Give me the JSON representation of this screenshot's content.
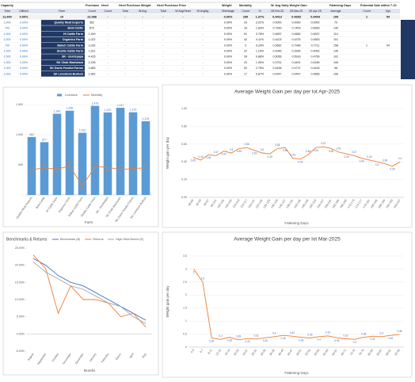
{
  "table": {
    "header_groups": [
      "Capacity",
      null,
      null,
      "Purchase",
      "Herd",
      "Herd Purchase Weight",
      null,
      "Herd Purchase Price",
      null,
      null,
      "Weight",
      "Mortality",
      null,
      "W. Avg Daily Weight Gain",
      null,
      null,
      "Fattening Days",
      "Potential Sale within 7-10",
      null
    ],
    "columns": [
      "Total",
      "Utilised",
      "Farm",
      "Count",
      "Count",
      "Total",
      "W.Avg",
      "Total",
      "W.Avg/Head",
      "W.Avg/kg",
      "Shrinkage",
      "Count",
      "%",
      "28-Feb-25",
      "28-Mar-25",
      "30-Apr-25",
      "Average",
      "Count",
      "Kgs"
    ],
    "total": [
      "11,400",
      "0.00%",
      "10",
      "22,088",
      "-",
      "-",
      "-",
      "-",
      "-",
      "-",
      "0.00%",
      "299",
      "1.37%",
      "0.4413",
      "0.4653",
      "0.4404",
      "109",
      "1",
      "54"
    ],
    "rows": [
      [
        "1,000",
        "0.00%",
        "Quality Meat Exports",
        "962",
        "-",
        "-",
        "-",
        "-",
        "-",
        "-",
        "0.00%",
        "29",
        "3.01%",
        "0.0000",
        "0.0000",
        "0.0000",
        "70",
        null,
        null
      ],
      [
        "700",
        "0.00%",
        "Bold Cattle",
        "872",
        "-",
        "-",
        "-",
        "-",
        "-",
        "-",
        "0.00%",
        "16",
        "1.83%",
        "0.7990",
        "0.7409",
        "0.6995",
        "140",
        null,
        null
      ],
      [
        "1,000",
        "0.00%",
        "HI Cattle Farm",
        "1,349",
        "-",
        "-",
        "-",
        "-",
        "-",
        "-",
        "0.00%",
        "51",
        "3.78%",
        "0.4657",
        "0.4669",
        "0.4637",
        "114",
        null,
        null
      ],
      [
        "1,000",
        "0.00%",
        "Organico Farm",
        "1,022",
        "-",
        "-",
        "-",
        "-",
        "-",
        "-",
        "0.00%",
        "42",
        "4.11%",
        "0.4103",
        "0.4375",
        "0.4563",
        "101",
        null,
        null
      ],
      [
        "700",
        "0.00%",
        "Bakuh Cattle Farm",
        "1,032",
        "-",
        "-",
        "-",
        "-",
        "-",
        "-",
        "0.00%",
        "3",
        "0.29%",
        "0.3682",
        "0.7948",
        "0.7711",
        "158",
        "1",
        "54"
      ],
      [
        "1,000",
        "0.00%",
        "Shellis Cattle Farm",
        "1,911",
        "-",
        "-",
        "-",
        "-",
        "-",
        "-",
        "0.00%",
        "22",
        "1.15%",
        "0.4346",
        "0.3994",
        "0.4052",
        "140",
        null,
        null
      ],
      [
        "2,500",
        "0.00%",
        "SK - Eerdsyapa",
        "4,425",
        "-",
        "-",
        "-",
        "-",
        "-",
        "-",
        "0.00%",
        "39",
        "0.88%",
        "0.5056",
        "0.5918",
        "0.4756",
        "102",
        null,
        null
      ],
      [
        "1,000",
        "0.00%",
        "SK Chak Mashwani",
        "2,195",
        "-",
        "-",
        "-",
        "-",
        "-",
        "-",
        "0.00%",
        "23",
        "1.05%",
        "0.3751",
        "0.4491",
        "0.4185",
        "106",
        null,
        null
      ],
      [
        "1,000",
        "0.00%",
        "SK Davis Feedlot Farms",
        "1,883",
        "-",
        "-",
        "-",
        "-",
        "-",
        "-",
        "0.00%",
        "52",
        "2.76%",
        "0.4436",
        "0.4737",
        "0.4425",
        "98",
        null,
        null
      ],
      [
        "1,000",
        "0.00%",
        "SK Livestock Bullock",
        "1,962",
        "-",
        "-",
        "-",
        "-",
        "-",
        "-",
        "0.00%",
        "17",
        "0.87%",
        "0.4347",
        "0.4467",
        "0.4685",
        "106",
        null,
        null
      ]
    ]
  },
  "chart_data": [
    {
      "type": "bar",
      "categories": [
        "Quality Meat Exports",
        "Bold Cattle",
        "HI Cattle Farm",
        "Organico Farm",
        "Bakuh Cattle Farm",
        "Shellis Cattle Farm",
        "SK - Eerdsyapa",
        "SK Chak Mashwani",
        "SK Davis Feedlot Farms",
        "SK Livestock Bullock"
      ],
      "series": [
        {
          "name": "Livestock",
          "type": "bar",
          "color": "#5b9bd5",
          "values": [
            962,
            877,
            1349,
            1399,
            1032,
            1479,
            1370,
            1447,
            1373,
            1224
          ],
          "value_labels": [
            "962",
            "877",
            "1,349",
            "1,399",
            "1,032",
            "1,479",
            "1,370",
            "1,447",
            "1,373",
            "1,224"
          ]
        },
        {
          "name": "Mortality",
          "type": "line",
          "color": "#ed7d31",
          "values": [
            420,
            450,
            430,
            480,
            150,
            470,
            460,
            420,
            440,
            450
          ]
        }
      ],
      "xlabel": "Farm",
      "ylim": [
        0,
        1500
      ],
      "yticks": [
        {
          "value": 0,
          "label": "-"
        },
        500,
        {
          "value": 1000,
          "label": "1,000"
        },
        {
          "value": 1500,
          "label": "1,500"
        }
      ],
      "grid": true,
      "legend": "top",
      "data_labels": true
    },
    {
      "type": "line",
      "title": "Average Weight Gain per day per lot Apr-2025",
      "categories": [
        "86-89",
        "90-93",
        "94-97",
        "98-101",
        "102-105",
        "106-109",
        "110-113",
        "114-117",
        "118-121",
        "122-125",
        "126-129",
        "130-133",
        "134-137",
        "138-141",
        "142-145",
        "146-149",
        "150-153",
        "154-157",
        "158-161",
        "162-165",
        "166-169",
        "170-173",
        "174-177",
        "178-181",
        "182-185",
        "186-189",
        "190-193",
        "194-197"
      ],
      "series": [
        {
          "color": "#ed7d31",
          "values": [
            0.45,
            0.42,
            0.48,
            0.47,
            0.52,
            0.5,
            0.55,
            0.56,
            0.53,
            0.5,
            0.49,
            0.55,
            0.56,
            0.44,
            0.43,
            0.48,
            0.56,
            0.57,
            0.55,
            0.51,
            0.49,
            0.47,
            0.44,
            0.42,
            0.4,
            0.38,
            0.35,
            0.4
          ]
        }
      ],
      "xlabel": "Fattening Days",
      "ylabel": "Weight gain per day",
      "ylim": [
        0,
        1
      ],
      "yticks": [
        {
          "value": 0,
          "label": "0.00"
        },
        {
          "value": 0.2,
          "label": "0.20"
        },
        {
          "value": 0.4,
          "label": "0.40"
        },
        {
          "value": 0.6,
          "label": "0.60"
        },
        {
          "value": 0.8,
          "label": "0.80"
        },
        {
          "value": 1,
          "label": "1.00"
        }
      ],
      "grid": true,
      "data_labels": true
    },
    {
      "type": "line",
      "title": "Benchmarks & Returns",
      "categories": [
        "August",
        "September",
        "October",
        "November",
        "December",
        "January",
        "February",
        "March",
        "April",
        "May"
      ],
      "series": [
        {
          "name": "Benchmark (B)",
          "color": "#4472c4",
          "values": [
            22,
            20,
            17,
            15,
            14,
            12,
            10,
            8,
            6,
            4
          ]
        },
        {
          "name": "Returns",
          "color": "#ed7d31",
          "values": [
            23,
            19,
            6,
            14,
            10,
            10,
            9,
            5,
            6,
            2
          ]
        },
        {
          "name": "High-Yield Bench (E)",
          "color": "#a5a5a5",
          "values": [
            21,
            18,
            16,
            14,
            13,
            11,
            9,
            8,
            5,
            3
          ]
        }
      ],
      "xlabel": "Months",
      "ylim": [
        -5,
        25
      ],
      "yticks": [
        {
          "value": -5,
          "label": "-5.00%"
        },
        {
          "value": 0,
          "label": "0.00%"
        },
        {
          "value": 5,
          "label": "5.00%"
        },
        {
          "value": 10,
          "label": "10.00%"
        },
        {
          "value": 15,
          "label": "15.00%"
        },
        {
          "value": 20,
          "label": "20.00%"
        },
        {
          "value": 25,
          "label": "25.00%"
        }
      ],
      "grid": false,
      "legend": "top-right"
    },
    {
      "type": "line",
      "title": "Average Weight Gain per day per lot Mar-2025",
      "categories": [
        "0-3",
        "4-7",
        "8-11",
        "12-15",
        "16-19",
        "20-23",
        "24-27",
        "28-31",
        "32-35",
        "36-39",
        "40-43",
        "44-47",
        "48-51",
        "52-55",
        "56-59",
        "60-63",
        "64-67",
        "68-71",
        "72-75",
        "76-79",
        "80-83",
        "84-87",
        "88-91",
        "92-95"
      ],
      "series": [
        {
          "color": "#ed7d31",
          "values": [
            3,
            2.5,
            0.35,
            0.3,
            0.38,
            0.28,
            0.33,
            0.31,
            0.36,
            0.4,
            0.45,
            0.42,
            0.38,
            0.35,
            0.4,
            0.43,
            0.36,
            0.32,
            0.3,
            0.38,
            0.42,
            0.4,
            0.45,
            0.48
          ]
        }
      ],
      "xlabel": "Fattening Days",
      "ylabel": "Weight gain per day",
      "ylim": [
        0,
        3.5
      ],
      "yticks": [
        0,
        0.5,
        1,
        1.5,
        2,
        2.5,
        3,
        3.5
      ],
      "grid": true,
      "data_labels": true
    }
  ]
}
